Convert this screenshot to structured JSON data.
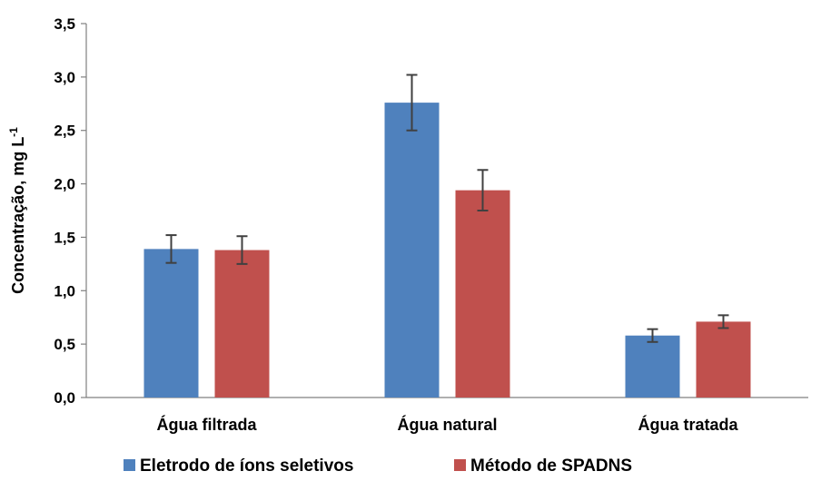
{
  "chart_data": {
    "type": "bar",
    "categories": [
      "Água filtrada",
      "Água natural",
      "Água tratada"
    ],
    "series": [
      {
        "name": "Eletrodo de íons seletivos",
        "color": "#4F81BD",
        "values": [
          1.39,
          2.76,
          0.58
        ],
        "errors": [
          0.13,
          0.26,
          0.06
        ]
      },
      {
        "name": "Método de SPADNS",
        "color": "#C0504D",
        "values": [
          1.38,
          1.94,
          0.71
        ],
        "errors": [
          0.13,
          0.19,
          0.06
        ]
      }
    ],
    "ylabel_main": "Concentração, mg L",
    "ylabel_sup": "-1",
    "ylim": [
      0,
      3.5
    ],
    "yticks": [
      "0,0",
      "0,5",
      "1,0",
      "1,5",
      "2,0",
      "2,5",
      "3,0",
      "3,5"
    ],
    "grid": false,
    "legend_position": "bottom"
  }
}
